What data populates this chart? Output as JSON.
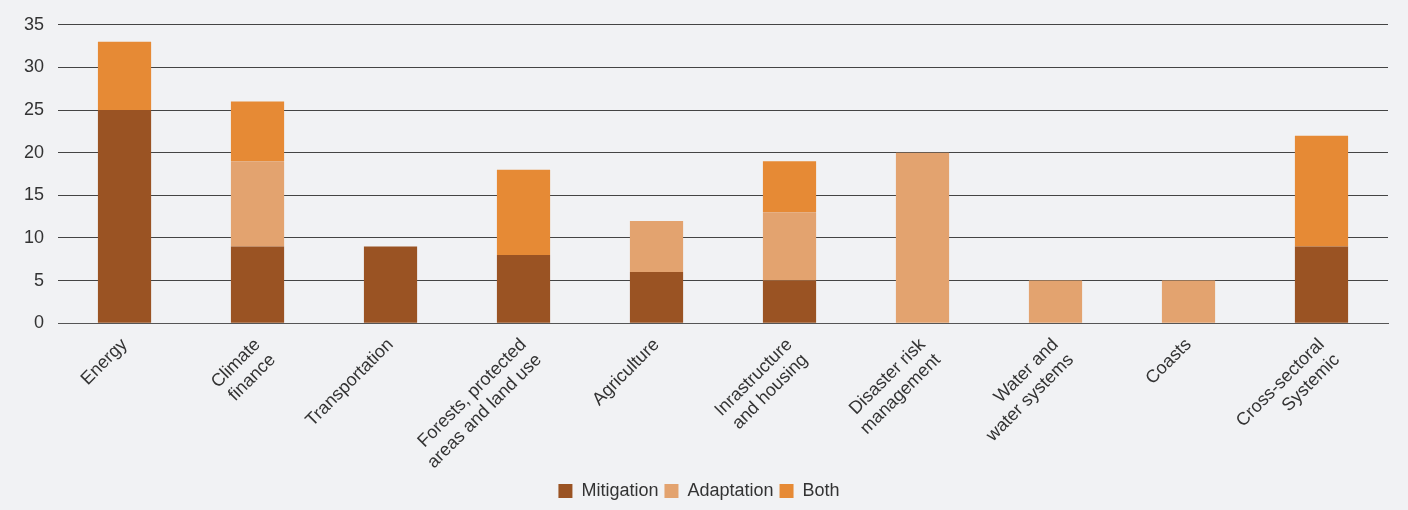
{
  "chart_data": {
    "type": "bar",
    "stacked": true,
    "categories": [
      "Energy",
      "Climate\nfinance",
      "Transportation",
      "Forests, protected\nareas and land use",
      "Agriculture",
      "Inrastructure\nand housing",
      "Disaster risk\nmanagement",
      "Water and\nwater systems",
      "Coasts",
      "Cross-sectoral\nSystemic"
    ],
    "series": [
      {
        "name": "Mitigation",
        "color": "#9a5323",
        "values": [
          25,
          9,
          9,
          8,
          6,
          5,
          null,
          null,
          null,
          9
        ]
      },
      {
        "name": "Adaptation",
        "color": "#e3a36f",
        "values": [
          null,
          10,
          null,
          null,
          6,
          8,
          20,
          5,
          5,
          null
        ]
      },
      {
        "name": "Both",
        "color": "#e68a35",
        "values": [
          8,
          7,
          null,
          10,
          null,
          6,
          null,
          null,
          null,
          13
        ]
      }
    ],
    "ylim": [
      0,
      35
    ],
    "yticks": [
      0,
      5,
      10,
      15,
      20,
      25,
      30,
      35
    ],
    "grid": "y",
    "legend": "bottom"
  }
}
